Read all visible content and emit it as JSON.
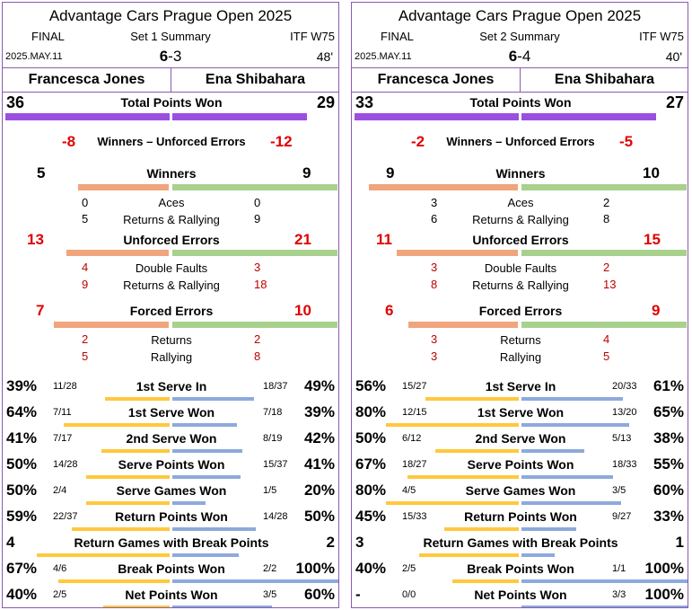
{
  "colors": {
    "border": "#8a5bb0",
    "total_bar": "#9b4fe0",
    "player_a_bar": "#f0a57c",
    "player_b_bar": "#a9d18e",
    "serve_bar_a": "#ffc83d",
    "serve_bar_b": "#8ea9db",
    "error_text": "#e00000"
  },
  "panels": [
    {
      "title": "Advantage Cars Prague Open 2025",
      "round": "FINAL",
      "set_label": "Set 1 Summary",
      "tournament_level": "ITF W75",
      "date": "2025.MAY.11",
      "score_a": "6",
      "score_sep": "-",
      "score_b": "3",
      "duration": "48'",
      "player_a": "Francesca Jones",
      "player_b": "Ena Shibahara",
      "total_points": {
        "label": "Total Points Won",
        "a": 36,
        "b": 29
      },
      "w_ue": {
        "label": "Winners – Unforced Errors",
        "a": "-8",
        "b": "-12"
      },
      "winners": {
        "label": "Winners",
        "a": 5,
        "b": 9,
        "rows": [
          {
            "label": "Aces",
            "a": "0",
            "b": "0"
          },
          {
            "label": "Returns & Rallying",
            "a": "5",
            "b": "9"
          }
        ]
      },
      "unforced": {
        "label": "Unforced Errors",
        "a": 13,
        "b": 21,
        "rows": [
          {
            "label": "Double Faults",
            "a": "4",
            "b": "3"
          },
          {
            "label": "Returns & Rallying",
            "a": "9",
            "b": "18"
          }
        ]
      },
      "forced": {
        "label": "Forced Errors",
        "a": 7,
        "b": 10,
        "rows": [
          {
            "label": "Returns",
            "a": "2",
            "b": "2"
          },
          {
            "label": "Rallying",
            "a": "5",
            "b": "8"
          }
        ]
      },
      "serve_stats": [
        {
          "label": "1st Serve In",
          "pa": "39%",
          "fa": "11/28",
          "fb": "18/37",
          "pb": "49%",
          "va": 0.39,
          "vb": 0.49
        },
        {
          "label": "1st Serve Won",
          "pa": "64%",
          "fa": "7/11",
          "fb": "7/18",
          "pb": "39%",
          "va": 0.64,
          "vb": 0.39
        },
        {
          "label": "2nd Serve Won",
          "pa": "41%",
          "fa": "7/17",
          "fb": "8/19",
          "pb": "42%",
          "va": 0.41,
          "vb": 0.42
        },
        {
          "label": "Serve Points Won",
          "pa": "50%",
          "fa": "14/28",
          "fb": "15/37",
          "pb": "41%",
          "va": 0.5,
          "vb": 0.41
        },
        {
          "label": "Serve Games Won",
          "pa": "50%",
          "fa": "2/4",
          "fb": "1/5",
          "pb": "20%",
          "va": 0.5,
          "vb": 0.2
        },
        {
          "label": "Return Points Won",
          "pa": "59%",
          "fa": "22/37",
          "fb": "14/28",
          "pb": "50%",
          "va": 0.59,
          "vb": 0.5
        },
        {
          "label": "Return Games with Break Points",
          "pa": "4",
          "fa": "",
          "fb": "",
          "pb": "2",
          "va": 0.8,
          "vb": 0.4
        },
        {
          "label": "Break Points Won",
          "pa": "67%",
          "fa": "4/6",
          "fb": "2/2",
          "pb": "100%",
          "va": 0.67,
          "vb": 1.0
        },
        {
          "label": "Net Points Won",
          "pa": "40%",
          "fa": "2/5",
          "fb": "3/5",
          "pb": "60%",
          "va": 0.4,
          "vb": 0.6
        }
      ]
    },
    {
      "title": "Advantage Cars Prague Open 2025",
      "round": "FINAL",
      "set_label": "Set 2 Summary",
      "tournament_level": "ITF W75",
      "date": "2025.MAY.11",
      "score_a": "6",
      "score_sep": "-",
      "score_b": "4",
      "duration": "40'",
      "player_a": "Francesca Jones",
      "player_b": "Ena Shibahara",
      "total_points": {
        "label": "Total Points Won",
        "a": 33,
        "b": 27
      },
      "w_ue": {
        "label": "Winners – Unforced Errors",
        "a": "-2",
        "b": "-5"
      },
      "winners": {
        "label": "Winners",
        "a": 9,
        "b": 10,
        "rows": [
          {
            "label": "Aces",
            "a": "3",
            "b": "2"
          },
          {
            "label": "Returns & Rallying",
            "a": "6",
            "b": "8"
          }
        ]
      },
      "unforced": {
        "label": "Unforced Errors",
        "a": 11,
        "b": 15,
        "rows": [
          {
            "label": "Double Faults",
            "a": "3",
            "b": "2"
          },
          {
            "label": "Returns & Rallying",
            "a": "8",
            "b": "13"
          }
        ]
      },
      "forced": {
        "label": "Forced Errors",
        "a": 6,
        "b": 9,
        "rows": [
          {
            "label": "Returns",
            "a": "3",
            "b": "4"
          },
          {
            "label": "Rallying",
            "a": "3",
            "b": "5"
          }
        ]
      },
      "serve_stats": [
        {
          "label": "1st Serve In",
          "pa": "56%",
          "fa": "15/27",
          "fb": "20/33",
          "pb": "61%",
          "va": 0.56,
          "vb": 0.61
        },
        {
          "label": "1st Serve Won",
          "pa": "80%",
          "fa": "12/15",
          "fb": "13/20",
          "pb": "65%",
          "va": 0.8,
          "vb": 0.65
        },
        {
          "label": "2nd Serve Won",
          "pa": "50%",
          "fa": "6/12",
          "fb": "5/13",
          "pb": "38%",
          "va": 0.5,
          "vb": 0.38
        },
        {
          "label": "Serve Points Won",
          "pa": "67%",
          "fa": "18/27",
          "fb": "18/33",
          "pb": "55%",
          "va": 0.67,
          "vb": 0.55
        },
        {
          "label": "Serve Games Won",
          "pa": "80%",
          "fa": "4/5",
          "fb": "3/5",
          "pb": "60%",
          "va": 0.8,
          "vb": 0.6
        },
        {
          "label": "Return Points Won",
          "pa": "45%",
          "fa": "15/33",
          "fb": "9/27",
          "pb": "33%",
          "va": 0.45,
          "vb": 0.33
        },
        {
          "label": "Return Games with Break Points",
          "pa": "3",
          "fa": "",
          "fb": "",
          "pb": "1",
          "va": 0.6,
          "vb": 0.2
        },
        {
          "label": "Break Points Won",
          "pa": "40%",
          "fa": "2/5",
          "fb": "1/1",
          "pb": "100%",
          "va": 0.4,
          "vb": 1.0
        },
        {
          "label": "Net Points Won",
          "pa": "-",
          "fa": "0/0",
          "fb": "3/3",
          "pb": "100%",
          "va": 0.0,
          "vb": 1.0
        }
      ]
    }
  ]
}
